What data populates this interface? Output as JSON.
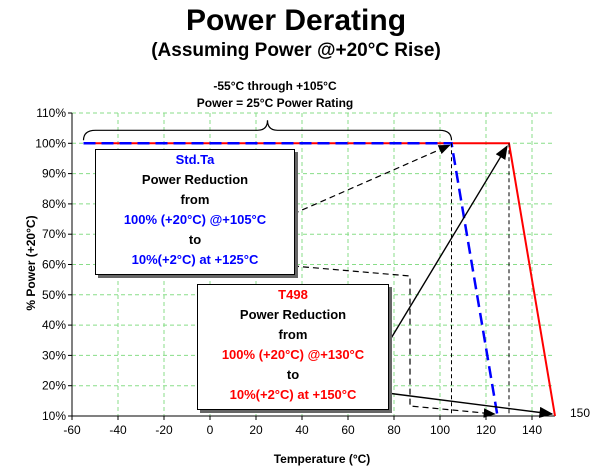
{
  "chart_data": {
    "type": "line",
    "title": "Power Derating",
    "subtitle": "(Assuming Power @+20°C Rise)",
    "xlabel": "Temperature (°C)",
    "ylabel": "% Power (+20°C)",
    "xlim": [
      -60,
      150
    ],
    "ylim": [
      10,
      110
    ],
    "x_ticks": [
      "-60",
      "-40",
      "-20",
      "0",
      "20",
      "40",
      "60",
      "80",
      "100",
      "120",
      "140"
    ],
    "y_ticks": [
      "10%",
      "20%",
      "30%",
      "40%",
      "50%",
      "60%",
      "70%",
      "80%",
      "90%",
      "100%",
      "110%"
    ],
    "grid": true,
    "series": [
      {
        "color": "#ff0000",
        "style": "solid",
        "x": [
          -55,
          130,
          150
        ],
        "y": [
          100,
          100,
          10
        ]
      },
      {
        "color": "#0000ff",
        "style": "dashed",
        "x": [
          -55,
          105,
          125
        ],
        "y": [
          100,
          100,
          10
        ]
      }
    ],
    "annotations": {
      "brace_line1": "-55°C through +105°C",
      "brace_line2": "Power = 25°C Power Rating",
      "right_label": "150"
    },
    "callouts": {
      "std": {
        "title": "Std.Ta",
        "line2": "Power Reduction",
        "line3": "from",
        "line4": "100% (+20°C) @+105°C",
        "line5": "to",
        "line6": "10%(+2°C) at +125°C"
      },
      "t498": {
        "title": "T498",
        "line2": "Power Reduction",
        "line3": "from",
        "line4": "100% (+20°C) @+130°C",
        "line5": "to",
        "line6": "10%(+2°C) at +150°C"
      }
    }
  },
  "colors": {
    "std": "#0000ff",
    "t498": "#ff0000",
    "grid": "#88dd88"
  }
}
